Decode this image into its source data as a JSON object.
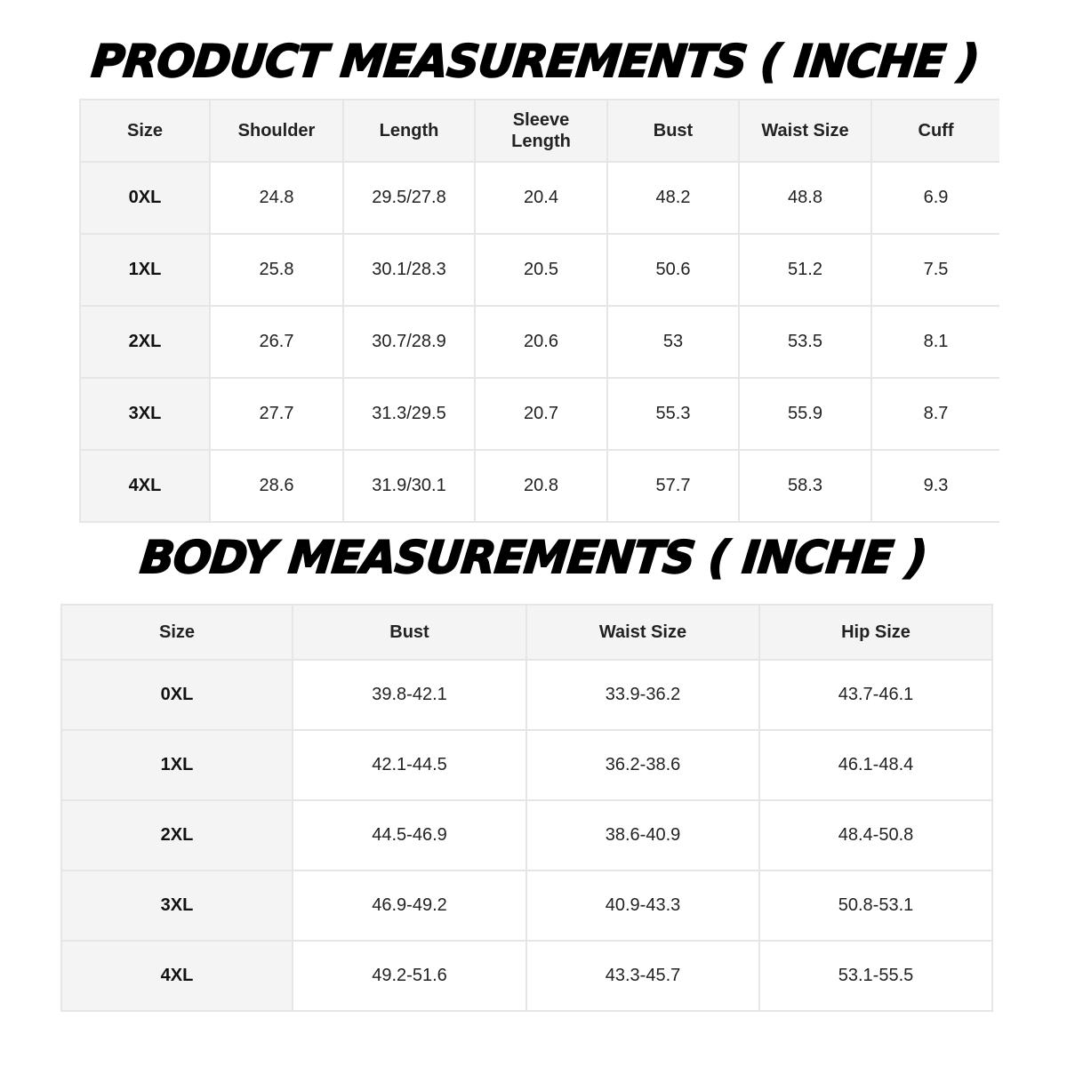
{
  "product": {
    "title": "PRODUCT MEASUREMENTS ( INCHE )",
    "headers": [
      "Size",
      "Shoulder",
      "Length",
      "Sleeve Length",
      "Bust",
      "Waist Size",
      "Cuff"
    ],
    "rows": [
      [
        "0XL",
        "24.8",
        "29.5/27.8",
        "20.4",
        "48.2",
        "48.8",
        "6.9"
      ],
      [
        "1XL",
        "25.8",
        "30.1/28.3",
        "20.5",
        "50.6",
        "51.2",
        "7.5"
      ],
      [
        "2XL",
        "26.7",
        "30.7/28.9",
        "20.6",
        "53",
        "53.5",
        "8.1"
      ],
      [
        "3XL",
        "27.7",
        "31.3/29.5",
        "20.7",
        "55.3",
        "55.9",
        "8.7"
      ],
      [
        "4XL",
        "28.6",
        "31.9/30.1",
        "20.8",
        "57.7",
        "58.3",
        "9.3"
      ]
    ]
  },
  "body": {
    "title": "BODY MEASUREMENTS ( INCHE )",
    "headers": [
      "Size",
      "Bust",
      "Waist Size",
      "Hip Size"
    ],
    "rows": [
      [
        "0XL",
        "39.8-42.1",
        "33.9-36.2",
        "43.7-46.1"
      ],
      [
        "1XL",
        "42.1-44.5",
        "36.2-38.6",
        "46.1-48.4"
      ],
      [
        "2XL",
        "44.5-46.9",
        "38.6-40.9",
        "48.4-50.8"
      ],
      [
        "3XL",
        "46.9-49.2",
        "40.9-43.3",
        "50.8-53.1"
      ],
      [
        "4XL",
        "49.2-51.6",
        "43.3-45.7",
        "53.1-55.5"
      ]
    ]
  }
}
